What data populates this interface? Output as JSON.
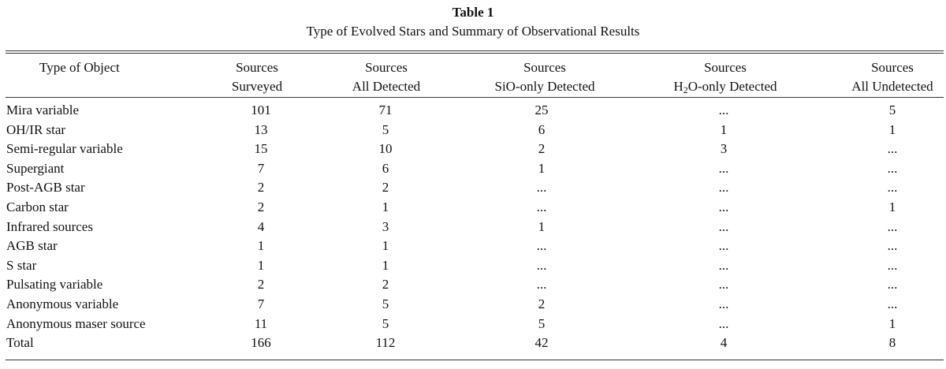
{
  "table": {
    "title": "Table 1",
    "subtitle": "Type of Evolved Stars and Summary of Observational Results",
    "headers": [
      {
        "line1": "Type of Object",
        "line2": ""
      },
      {
        "line1": "Sources",
        "line2": "Surveyed"
      },
      {
        "line1": "Sources",
        "line2": "All Detected"
      },
      {
        "line1": "Sources",
        "line2": "SiO-only Detected"
      },
      {
        "line1": "Sources",
        "line2_pre": "H",
        "line2_sub": "2",
        "line2_post": "O-only Detected"
      },
      {
        "line1": "Sources",
        "line2": "All Undetected"
      }
    ],
    "rows": [
      [
        "Mira variable",
        "101",
        "71",
        "25",
        "...",
        "5"
      ],
      [
        "OH/IR star",
        "13",
        "5",
        "6",
        "1",
        "1"
      ],
      [
        "Semi-regular variable",
        "15",
        "10",
        "2",
        "3",
        "..."
      ],
      [
        "Supergiant",
        "7",
        "6",
        "1",
        "...",
        "..."
      ],
      [
        "Post-AGB star",
        "2",
        "2",
        "...",
        "...",
        "..."
      ],
      [
        "Carbon star",
        "2",
        "1",
        "...",
        "...",
        "1"
      ],
      [
        "Infrared sources",
        "4",
        "3",
        "1",
        "...",
        "..."
      ],
      [
        "AGB star",
        "1",
        "1",
        "...",
        "...",
        "..."
      ],
      [
        "S star",
        "1",
        "1",
        "...",
        "...",
        "..."
      ],
      [
        "Pulsating variable",
        "2",
        "2",
        "...",
        "...",
        "..."
      ],
      [
        "Anonymous variable",
        "7",
        "5",
        "2",
        "...",
        "..."
      ],
      [
        "Anonymous maser source",
        "11",
        "5",
        "5",
        "...",
        "1"
      ],
      [
        "Total",
        "166",
        "112",
        "42",
        "4",
        "8"
      ]
    ]
  }
}
